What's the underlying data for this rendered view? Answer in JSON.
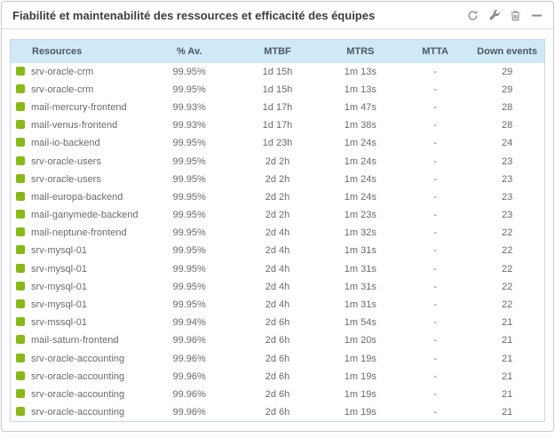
{
  "widget": {
    "title": "Fiabilité et maintenabilité des ressources et efficacité des équipes",
    "toolbar_icons": [
      "refresh",
      "wrench",
      "trash",
      "collapse"
    ]
  },
  "table": {
    "columns": [
      "Resources",
      "% Av.",
      "MTBF",
      "MTRS",
      "MTTA",
      "Down events"
    ],
    "row_fields": [
      "resource",
      "availability",
      "mtbf",
      "mtrs",
      "mtta",
      "down_events"
    ],
    "rows": [
      {
        "status": "ok",
        "resource": "srv-oracle-crm",
        "availability": "99.95%",
        "mtbf": "1d 15h",
        "mtrs": "1m 13s",
        "mtta": "-",
        "down_events": "29"
      },
      {
        "status": "ok",
        "resource": "srv-oracle-crm",
        "availability": "99.95%",
        "mtbf": "1d 15h",
        "mtrs": "1m 13s",
        "mtta": "-",
        "down_events": "29"
      },
      {
        "status": "ok",
        "resource": "mail-mercury-frontend",
        "availability": "99.93%",
        "mtbf": "1d 17h",
        "mtrs": "1m 47s",
        "mtta": "-",
        "down_events": "28"
      },
      {
        "status": "ok",
        "resource": "mail-venus-frontend",
        "availability": "99.93%",
        "mtbf": "1d 17h",
        "mtrs": "1m 38s",
        "mtta": "-",
        "down_events": "28"
      },
      {
        "status": "ok",
        "resource": "mail-io-backend",
        "availability": "99.95%",
        "mtbf": "1d 23h",
        "mtrs": "1m 24s",
        "mtta": "-",
        "down_events": "24"
      },
      {
        "status": "ok",
        "resource": "srv-oracle-users",
        "availability": "99.95%",
        "mtbf": "2d 2h",
        "mtrs": "1m 24s",
        "mtta": "-",
        "down_events": "23"
      },
      {
        "status": "ok",
        "resource": "srv-oracle-users",
        "availability": "99.95%",
        "mtbf": "2d 2h",
        "mtrs": "1m 24s",
        "mtta": "-",
        "down_events": "23"
      },
      {
        "status": "ok",
        "resource": "mail-europa-backend",
        "availability": "99.95%",
        "mtbf": "2d 2h",
        "mtrs": "1m 24s",
        "mtta": "-",
        "down_events": "23"
      },
      {
        "status": "ok",
        "resource": "mail-ganymede-backend",
        "availability": "99.95%",
        "mtbf": "2d 2h",
        "mtrs": "1m 23s",
        "mtta": "-",
        "down_events": "23"
      },
      {
        "status": "ok",
        "resource": "mail-neptune-frontend",
        "availability": "99.95%",
        "mtbf": "2d 4h",
        "mtrs": "1m 32s",
        "mtta": "-",
        "down_events": "22"
      },
      {
        "status": "ok",
        "resource": "srv-mysql-01",
        "availability": "99.95%",
        "mtbf": "2d 4h",
        "mtrs": "1m 31s",
        "mtta": "-",
        "down_events": "22"
      },
      {
        "status": "ok",
        "resource": "srv-mysql-01",
        "availability": "99.95%",
        "mtbf": "2d 4h",
        "mtrs": "1m 31s",
        "mtta": "-",
        "down_events": "22"
      },
      {
        "status": "ok",
        "resource": "srv-mysql-01",
        "availability": "99.95%",
        "mtbf": "2d 4h",
        "mtrs": "1m 31s",
        "mtta": "-",
        "down_events": "22"
      },
      {
        "status": "ok",
        "resource": "srv-mysql-01",
        "availability": "99.95%",
        "mtbf": "2d 4h",
        "mtrs": "1m 31s",
        "mtta": "-",
        "down_events": "22"
      },
      {
        "status": "ok",
        "resource": "srv-mssql-01",
        "availability": "99.94%",
        "mtbf": "2d 6h",
        "mtrs": "1m 54s",
        "mtta": "-",
        "down_events": "21"
      },
      {
        "status": "ok",
        "resource": "mail-saturn-frontend",
        "availability": "99.96%",
        "mtbf": "2d 6h",
        "mtrs": "1m 20s",
        "mtta": "-",
        "down_events": "21"
      },
      {
        "status": "ok",
        "resource": "srv-oracle-accounting",
        "availability": "99.96%",
        "mtbf": "2d 6h",
        "mtrs": "1m 19s",
        "mtta": "-",
        "down_events": "21"
      },
      {
        "status": "ok",
        "resource": "srv-oracle-accounting",
        "availability": "99.96%",
        "mtbf": "2d 6h",
        "mtrs": "1m 19s",
        "mtta": "-",
        "down_events": "21"
      },
      {
        "status": "ok",
        "resource": "srv-oracle-accounting",
        "availability": "99.96%",
        "mtbf": "2d 6h",
        "mtrs": "1m 19s",
        "mtta": "-",
        "down_events": "21"
      },
      {
        "status": "ok",
        "resource": "srv-oracle-accounting",
        "availability": "99.96%",
        "mtbf": "2d 6h",
        "mtrs": "1m 19s",
        "mtta": "-",
        "down_events": "21"
      }
    ]
  },
  "colors": {
    "status_ok": "#88b917",
    "header_bg": "#cfe9f7",
    "header_text": "#4c5866",
    "row_text": "#6b6b6b",
    "widget_border": "#c9c9c9",
    "table_border": "#c7d9e5",
    "title_text": "#3d3d3d",
    "icon_color": "#8b8b8b"
  }
}
